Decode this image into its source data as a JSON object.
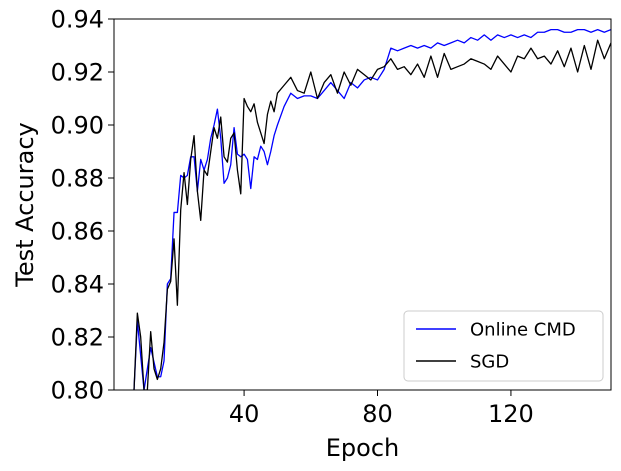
{
  "chart_data": {
    "type": "line",
    "title": "",
    "xlabel": "Epoch",
    "ylabel": "Test Accuracy",
    "xlim": [
      1,
      150
    ],
    "ylim": [
      0.8,
      0.94
    ],
    "xticks": [
      40,
      80,
      120
    ],
    "yticks": [
      0.8,
      0.82,
      0.84,
      0.86,
      0.88,
      0.9,
      0.92,
      0.94
    ],
    "xtick_labels": [
      "40",
      "80",
      "120"
    ],
    "ytick_labels": [
      "0.80",
      "0.82",
      "0.84",
      "0.86",
      "0.88",
      "0.90",
      "0.92",
      "0.94"
    ],
    "grid": false,
    "legend_position": "lower-right",
    "series": [
      {
        "name": "Online CMD",
        "color": "#0000ff",
        "x": [
          7,
          8,
          10,
          12,
          14,
          15,
          16,
          17,
          18,
          19,
          20,
          21,
          22,
          23,
          24,
          25,
          26,
          27,
          28,
          29,
          30,
          31,
          32,
          33,
          34,
          35,
          36,
          37,
          38,
          39,
          40,
          41,
          42,
          43,
          44,
          45,
          46,
          47,
          48,
          49,
          50,
          52,
          54,
          56,
          58,
          60,
          62,
          64,
          66,
          68,
          70,
          72,
          74,
          76,
          78,
          80,
          82,
          84,
          86,
          88,
          90,
          92,
          94,
          96,
          98,
          100,
          102,
          104,
          106,
          108,
          110,
          112,
          114,
          116,
          118,
          120,
          122,
          124,
          126,
          128,
          130,
          132,
          134,
          136,
          138,
          140,
          142,
          144,
          146,
          148,
          150
        ],
        "y": [
          0.8,
          0.826,
          0.8,
          0.816,
          0.805,
          0.805,
          0.811,
          0.84,
          0.842,
          0.867,
          0.867,
          0.881,
          0.88,
          0.881,
          0.888,
          0.888,
          0.875,
          0.887,
          0.883,
          0.887,
          0.895,
          0.9,
          0.906,
          0.895,
          0.878,
          0.88,
          0.885,
          0.899,
          0.889,
          0.888,
          0.889,
          0.887,
          0.876,
          0.888,
          0.887,
          0.892,
          0.89,
          0.885,
          0.89,
          0.896,
          0.9,
          0.907,
          0.912,
          0.91,
          0.911,
          0.911,
          0.91,
          0.913,
          0.916,
          0.913,
          0.91,
          0.916,
          0.914,
          0.917,
          0.918,
          0.917,
          0.921,
          0.929,
          0.928,
          0.929,
          0.93,
          0.929,
          0.93,
          0.929,
          0.931,
          0.93,
          0.931,
          0.932,
          0.931,
          0.933,
          0.932,
          0.934,
          0.932,
          0.934,
          0.933,
          0.934,
          0.933,
          0.934,
          0.933,
          0.935,
          0.935,
          0.936,
          0.936,
          0.935,
          0.935,
          0.936,
          0.936,
          0.935,
          0.936,
          0.935,
          0.936
        ]
      },
      {
        "name": "SGD",
        "color": "#000000",
        "x": [
          7,
          8,
          9,
          10,
          11,
          12,
          13,
          14,
          15,
          16,
          17,
          18,
          19,
          20,
          21,
          22,
          23,
          24,
          25,
          26,
          27,
          28,
          29,
          30,
          31,
          32,
          33,
          34,
          35,
          36,
          37,
          38,
          39,
          40,
          41,
          42,
          43,
          44,
          45,
          46,
          47,
          48,
          49,
          50,
          52,
          54,
          56,
          58,
          60,
          62,
          64,
          66,
          68,
          70,
          72,
          74,
          76,
          78,
          80,
          82,
          84,
          86,
          88,
          90,
          92,
          94,
          96,
          98,
          100,
          102,
          104,
          106,
          108,
          110,
          112,
          114,
          116,
          118,
          120,
          122,
          124,
          126,
          128,
          130,
          132,
          134,
          136,
          138,
          140,
          142,
          144,
          146,
          148,
          150
        ],
        "y": [
          0.8,
          0.829,
          0.82,
          0.8,
          0.8,
          0.822,
          0.808,
          0.804,
          0.808,
          0.818,
          0.838,
          0.841,
          0.857,
          0.832,
          0.868,
          0.882,
          0.87,
          0.887,
          0.896,
          0.875,
          0.864,
          0.883,
          0.881,
          0.89,
          0.899,
          0.895,
          0.903,
          0.888,
          0.886,
          0.895,
          0.897,
          0.883,
          0.874,
          0.91,
          0.907,
          0.905,
          0.908,
          0.901,
          0.897,
          0.893,
          0.904,
          0.909,
          0.905,
          0.912,
          0.915,
          0.918,
          0.913,
          0.912,
          0.92,
          0.91,
          0.916,
          0.919,
          0.912,
          0.92,
          0.915,
          0.921,
          0.919,
          0.917,
          0.921,
          0.922,
          0.925,
          0.921,
          0.922,
          0.919,
          0.923,
          0.918,
          0.926,
          0.918,
          0.927,
          0.921,
          0.922,
          0.923,
          0.925,
          0.924,
          0.923,
          0.921,
          0.926,
          0.923,
          0.92,
          0.926,
          0.925,
          0.929,
          0.925,
          0.926,
          0.923,
          0.928,
          0.922,
          0.929,
          0.92,
          0.93,
          0.921,
          0.932,
          0.925,
          0.931
        ]
      }
    ]
  }
}
